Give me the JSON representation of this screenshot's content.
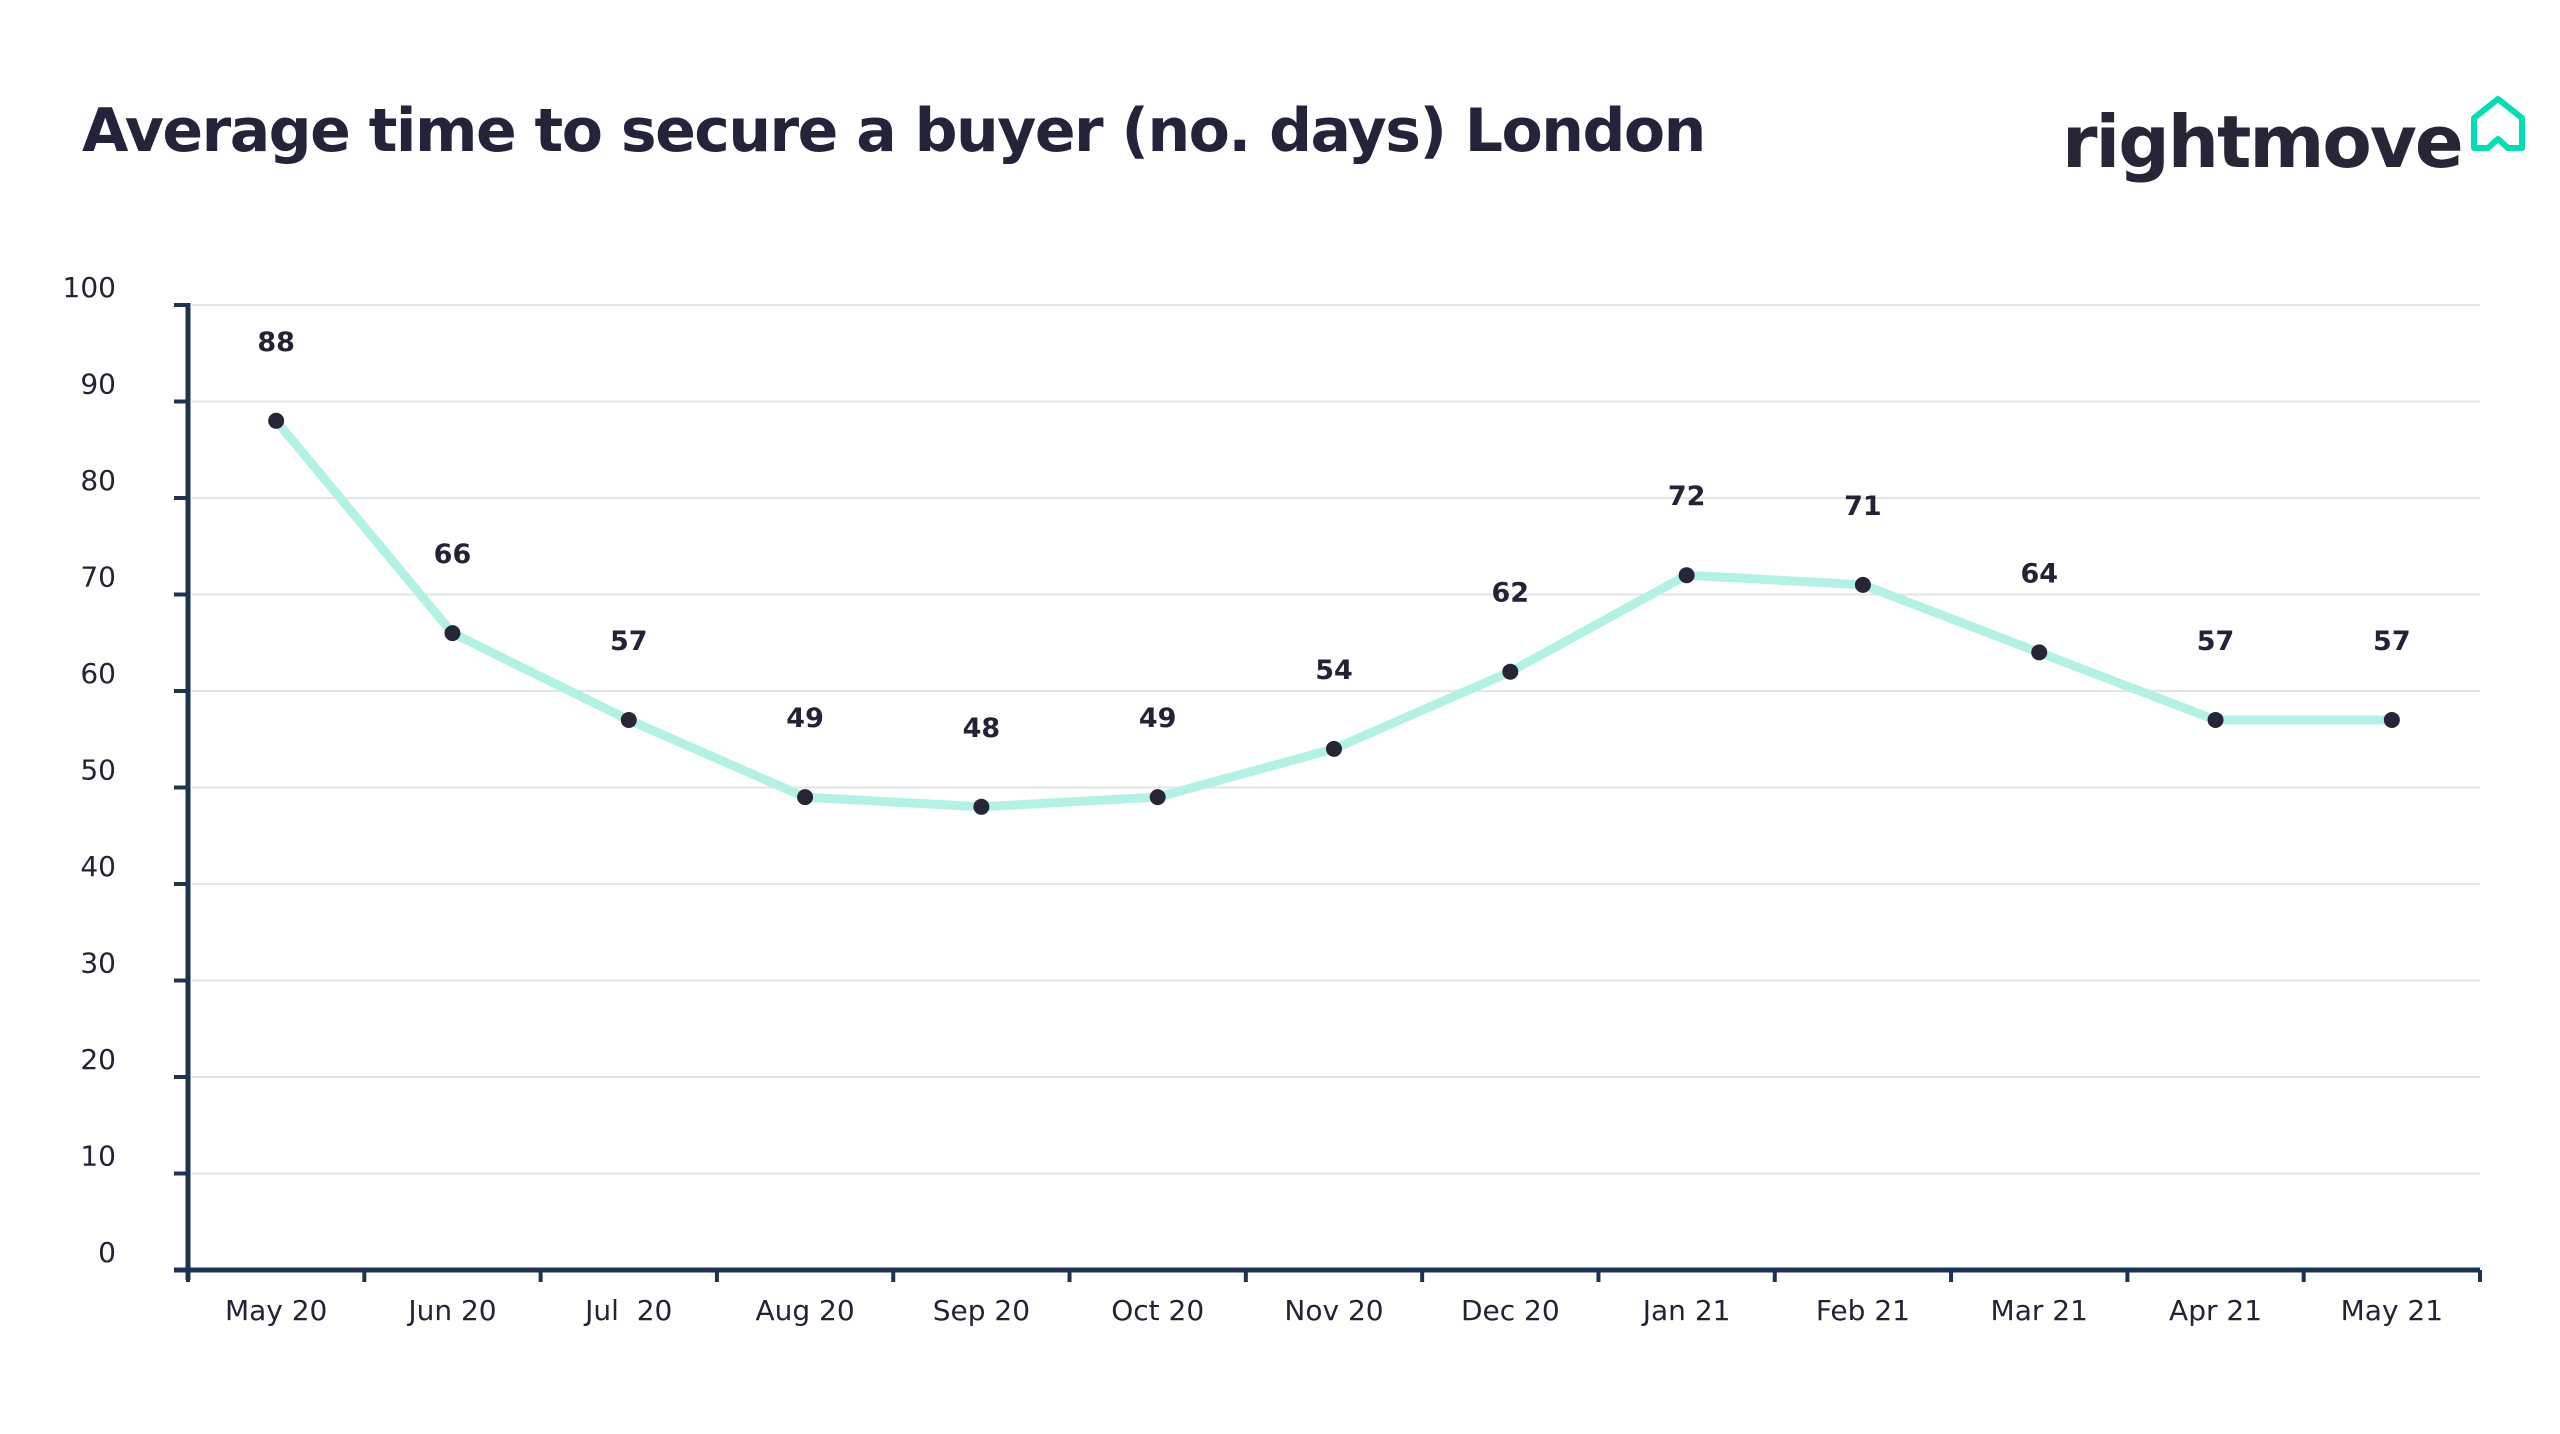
{
  "header": {
    "title": "Average time to secure a buyer (no. days) London",
    "logo_text": "rightmove",
    "logo_icon": "house-outline-icon"
  },
  "colors": {
    "line": "#b2f2e4",
    "marker": "#262637",
    "axis": "#1d3354",
    "grid": "#e4e4e4",
    "logo_accent": "#00deb6",
    "text": "#232336"
  },
  "chart_data": {
    "type": "line",
    "title": "Average time to secure a buyer (no. days) London",
    "xlabel": "",
    "ylabel": "",
    "categories": [
      "May 20",
      "Jun 20",
      "Jul  20",
      "Aug 20",
      "Sep 20",
      "Oct 20",
      "Nov 20",
      "Dec 20",
      "Jan 21",
      "Feb 21",
      "Mar 21",
      "Apr 21",
      "May 21"
    ],
    "series": [
      {
        "name": "Average time to secure a buyer (no. days)",
        "values": [
          88,
          66,
          57,
          49,
          48,
          49,
          54,
          62,
          72,
          71,
          64,
          57,
          57
        ]
      }
    ],
    "data_labels": [
      "88",
      "66",
      "57",
      "49",
      "48",
      "49",
      "54",
      "62",
      "72",
      "71",
      "64",
      "57",
      "57"
    ],
    "ylim": [
      0,
      100
    ],
    "yticks": [
      0,
      10,
      20,
      30,
      40,
      50,
      60,
      70,
      80,
      90,
      100
    ],
    "grid": true,
    "legend": "none"
  }
}
